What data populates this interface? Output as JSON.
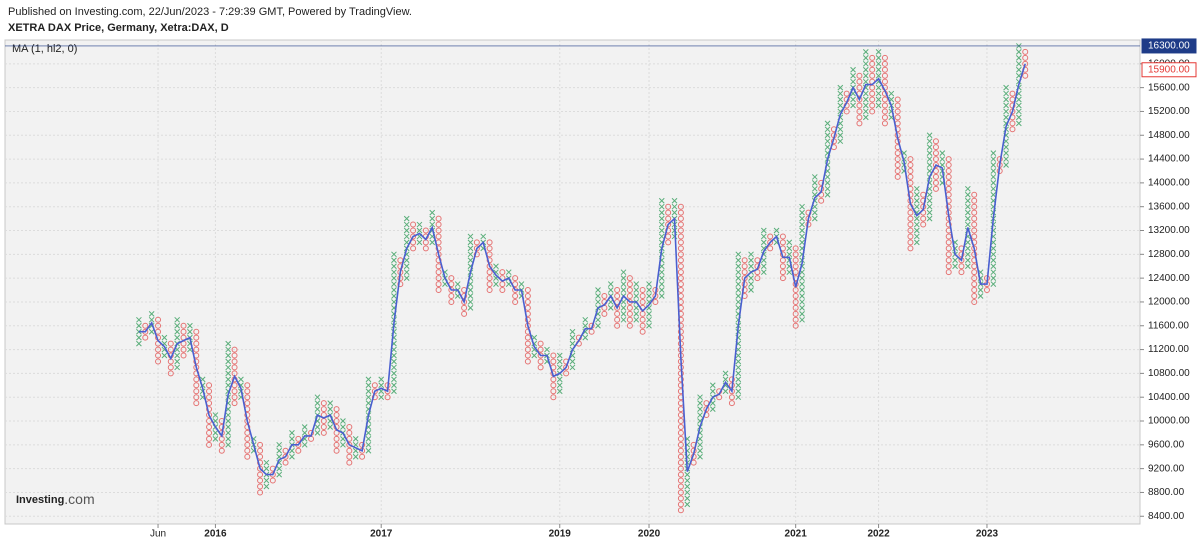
{
  "header": {
    "published": "Published on Investing.com, 22/Jun/2023 - 7:29:39 GMT, Powered by TradingView.",
    "title": "XETRA DAX Price, Germany, Xetra:DAX, D"
  },
  "logo": {
    "main": "Investing",
    "suffix": ".com"
  },
  "chart_data": {
    "type": "point-and-figure",
    "indicator_label": "MA (1, hl2, 0)",
    "box_size": 100,
    "first_column": "X",
    "x_color": "#5aae7a",
    "o_color": "#e57373",
    "ma_color": "#4a5fd0",
    "grid": true,
    "columns": [
      [
        11300,
        11700
      ],
      [
        11400,
        11600
      ],
      [
        11500,
        11800
      ],
      [
        11000,
        11700
      ],
      [
        11100,
        11400
      ],
      [
        10800,
        11300
      ],
      [
        10900,
        11700
      ],
      [
        11100,
        11600
      ],
      [
        11200,
        11600
      ],
      [
        10300,
        11500
      ],
      [
        10400,
        10700
      ],
      [
        9600,
        10600
      ],
      [
        9700,
        10100
      ],
      [
        9500,
        10000
      ],
      [
        9600,
        11300
      ],
      [
        10300,
        11200
      ],
      [
        10400,
        10700
      ],
      [
        9400,
        10600
      ],
      [
        9500,
        9700
      ],
      [
        8800,
        9600
      ],
      [
        8900,
        9300
      ],
      [
        9000,
        9200
      ],
      [
        9100,
        9600
      ],
      [
        9300,
        9500
      ],
      [
        9400,
        9800
      ],
      [
        9500,
        9700
      ],
      [
        9600,
        9900
      ],
      [
        9700,
        9800
      ],
      [
        9800,
        10400
      ],
      [
        9800,
        10300
      ],
      [
        9900,
        10300
      ],
      [
        9500,
        10200
      ],
      [
        9600,
        10000
      ],
      [
        9300,
        9900
      ],
      [
        9400,
        9700
      ],
      [
        9400,
        9600
      ],
      [
        9500,
        10700
      ],
      [
        10400,
        10600
      ],
      [
        10400,
        10700
      ],
      [
        10400,
        10600
      ],
      [
        10500,
        12800
      ],
      [
        12300,
        12700
      ],
      [
        12400,
        13400
      ],
      [
        12900,
        13300
      ],
      [
        13000,
        13300
      ],
      [
        12900,
        13200
      ],
      [
        13000,
        13500
      ],
      [
        12200,
        13400
      ],
      [
        12300,
        12500
      ],
      [
        12000,
        12400
      ],
      [
        12100,
        12300
      ],
      [
        11800,
        12200
      ],
      [
        11900,
        13100
      ],
      [
        12800,
        13000
      ],
      [
        12900,
        13100
      ],
      [
        12200,
        13000
      ],
      [
        12300,
        12600
      ],
      [
        12200,
        12500
      ],
      [
        12300,
        12500
      ],
      [
        12000,
        12400
      ],
      [
        12100,
        12300
      ],
      [
        11000,
        12200
      ],
      [
        11100,
        11400
      ],
      [
        10900,
        11300
      ],
      [
        11000,
        11200
      ],
      [
        10400,
        11100
      ],
      [
        10500,
        11100
      ],
      [
        10800,
        11000
      ],
      [
        10900,
        11500
      ],
      [
        11300,
        11400
      ],
      [
        11400,
        11700
      ],
      [
        11500,
        11600
      ],
      [
        11600,
        12200
      ],
      [
        11800,
        12100
      ],
      [
        11900,
        12300
      ],
      [
        11600,
        12200
      ],
      [
        11700,
        12500
      ],
      [
        11600,
        12400
      ],
      [
        11700,
        12300
      ],
      [
        11500,
        12200
      ],
      [
        11600,
        12300
      ],
      [
        12000,
        12200
      ],
      [
        12100,
        13700
      ],
      [
        13000,
        13600
      ],
      [
        13100,
        13700
      ],
      [
        8500,
        13600
      ],
      [
        8600,
        9700
      ],
      [
        9300,
        9600
      ],
      [
        9400,
        10400
      ],
      [
        10100,
        10300
      ],
      [
        10200,
        10600
      ],
      [
        10400,
        10500
      ],
      [
        10500,
        10800
      ],
      [
        10300,
        10700
      ],
      [
        10400,
        12800
      ],
      [
        12100,
        12700
      ],
      [
        12200,
        12800
      ],
      [
        12400,
        12700
      ],
      [
        12500,
        13200
      ],
      [
        12900,
        13100
      ],
      [
        13000,
        13200
      ],
      [
        12400,
        13100
      ],
      [
        12500,
        13000
      ],
      [
        11600,
        12900
      ],
      [
        11700,
        13600
      ],
      [
        13300,
        13500
      ],
      [
        13400,
        14100
      ],
      [
        13700,
        14000
      ],
      [
        13800,
        15000
      ],
      [
        14600,
        14900
      ],
      [
        14700,
        15600
      ],
      [
        15200,
        15500
      ],
      [
        15300,
        15900
      ],
      [
        15000,
        15800
      ],
      [
        15100,
        16200
      ],
      [
        15200,
        16100
      ],
      [
        15300,
        16200
      ],
      [
        15000,
        16100
      ],
      [
        15100,
        15500
      ],
      [
        14100,
        15400
      ],
      [
        14200,
        14500
      ],
      [
        12900,
        14400
      ],
      [
        13000,
        13900
      ],
      [
        13300,
        13800
      ],
      [
        13400,
        14800
      ],
      [
        13900,
        14700
      ],
      [
        14000,
        14500
      ],
      [
        12500,
        14400
      ],
      [
        12600,
        13000
      ],
      [
        12500,
        12900
      ],
      [
        12600,
        13900
      ],
      [
        12000,
        13800
      ],
      [
        12100,
        12500
      ],
      [
        12200,
        12400
      ],
      [
        12300,
        14500
      ],
      [
        14200,
        14400
      ],
      [
        14300,
        15600
      ],
      [
        14900,
        15500
      ],
      [
        15000,
        16300
      ],
      [
        15800,
        16200
      ]
    ],
    "ma": [
      11500,
      11500,
      11650,
      11350,
      11250,
      11050,
      11300,
      11350,
      11400,
      10900,
      10550,
      10100,
      9900,
      9750,
      10450,
      10750,
      10550,
      10000,
      9600,
      9200,
      9100,
      9100,
      9350,
      9400,
      9600,
      9600,
      9750,
      9750,
      10100,
      10050,
      10100,
      9850,
      9800,
      9600,
      9550,
      9500,
      10100,
      10500,
      10550,
      10500,
      11650,
      12500,
      12900,
      13100,
      13150,
      13050,
      13250,
      12800,
      12400,
      12200,
      12200,
      12000,
      12500,
      12900,
      13000,
      12600,
      12450,
      12350,
      12400,
      12200,
      12200,
      11600,
      11250,
      11100,
      11100,
      10750,
      10800,
      10900,
      11200,
      11350,
      11550,
      11550,
      11900,
      11950,
      12100,
      11900,
      12100,
      12000,
      12000,
      11850,
      11950,
      12100,
      12900,
      13300,
      13400,
      11050,
      9150,
      9450,
      9900,
      10200,
      10400,
      10450,
      10650,
      10500,
      11600,
      12400,
      12500,
      12550,
      12850,
      13000,
      13100,
      12750,
      12750,
      12250,
      12650,
      13400,
      13750,
      13850,
      14400,
      14750,
      15150,
      15350,
      15600,
      15400,
      15650,
      15650,
      15750,
      15550,
      15300,
      14750,
      14350,
      13650,
      13450,
      13550,
      14100,
      14300,
      14250,
      13450,
      12800,
      12700,
      13250,
      12900,
      12300,
      12300,
      13400,
      14300,
      14950,
      15200,
      15650,
      16000
    ],
    "xlim": [
      -21,
      157
    ],
    "xticks": [
      {
        "value": 3,
        "label": "Jun"
      },
      {
        "value": 12,
        "label": "2016"
      },
      {
        "value": 38,
        "label": "2017"
      },
      {
        "value": 66,
        "label": "2019"
      },
      {
        "value": 80,
        "label": "2020"
      },
      {
        "value": 103,
        "label": "2021"
      },
      {
        "value": 116,
        "label": "2022"
      },
      {
        "value": 133,
        "label": "2023"
      }
    ],
    "ylim": [
      8270,
      16400
    ],
    "yticks": [
      {
        "value": 8400,
        "label": "8400.00"
      },
      {
        "value": 8800,
        "label": "8800.00"
      },
      {
        "value": 9200,
        "label": "9200.00"
      },
      {
        "value": 9600,
        "label": "9600.00"
      },
      {
        "value": 10000,
        "label": "10000.00"
      },
      {
        "value": 10400,
        "label": "10400.00"
      },
      {
        "value": 10800,
        "label": "10800.00"
      },
      {
        "value": 11200,
        "label": "11200.00"
      },
      {
        "value": 11600,
        "label": "11600.00"
      },
      {
        "value": 12000,
        "label": "12000.00"
      },
      {
        "value": 12400,
        "label": "12400.00"
      },
      {
        "value": 12800,
        "label": "12800.00"
      },
      {
        "value": 13200,
        "label": "13200.00"
      },
      {
        "value": 13600,
        "label": "13600.00"
      },
      {
        "value": 14000,
        "label": "14000.00"
      },
      {
        "value": 14400,
        "label": "14400.00"
      },
      {
        "value": 14800,
        "label": "14800.00"
      },
      {
        "value": 15200,
        "label": "15200.00"
      },
      {
        "value": 15600,
        "label": "15600.00"
      },
      {
        "value": 16000,
        "label": "16000.00"
      }
    ],
    "price_markers": [
      {
        "value": 16300,
        "label": "16300.00",
        "color": "#1f3c88"
      },
      {
        "value": 15900,
        "label": "15900.00",
        "color": "#e53935"
      }
    ]
  }
}
